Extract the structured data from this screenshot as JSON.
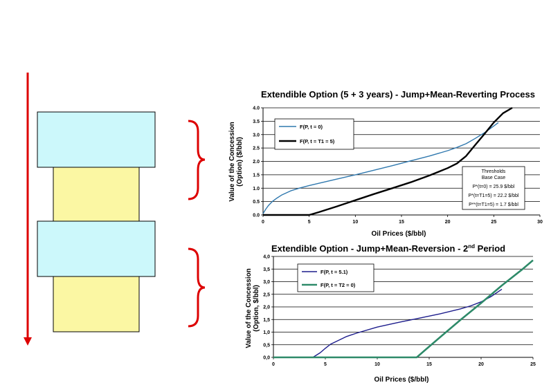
{
  "colors": {
    "arrow": "#dd0000",
    "brace": "#dd0000",
    "cyan_block": "#ccf8fb",
    "yellow_block": "#fbf7a3",
    "series_top_1": "#2f78ae",
    "series_top_2": "#000000",
    "series_bottom_1": "#1c1c8c",
    "series_bottom_2": "#2e8a69"
  },
  "icons": {
    "timeline_arrow": "down-arrow-icon",
    "braces": "right-curly-brace-icon"
  },
  "chart_data": [
    {
      "type": "line",
      "title": "Extendible Option (5 + 3 years) - Jump+Mean-Reverting Process",
      "xlabel": "Oil Prices ($/bbl)",
      "ylabel_line1": "Value of the Concession",
      "ylabel_line2": "(Option) ($/bbl)",
      "xlim": [
        0,
        30
      ],
      "ylim": [
        0,
        4
      ],
      "xticks": [
        "0",
        "5",
        "10",
        "15",
        "20",
        "25",
        "30"
      ],
      "yticks": [
        "0.0",
        "0.5",
        "1.0",
        "1.5",
        "2.0",
        "2.5",
        "3.0",
        "3.5",
        "4.0"
      ],
      "grid": "horizontal",
      "legend_position": "top-left",
      "series": [
        {
          "name": "F(P, t = 0)",
          "x": [
            0,
            0.3,
            0.6,
            1,
            1.5,
            2,
            3,
            4,
            5,
            6,
            8,
            10,
            12,
            14,
            16,
            18,
            20,
            21,
            22,
            23,
            24,
            25,
            25.5
          ],
          "y": [
            0.05,
            0.22,
            0.36,
            0.5,
            0.63,
            0.74,
            0.9,
            1.01,
            1.1,
            1.18,
            1.34,
            1.5,
            1.67,
            1.84,
            2.02,
            2.2,
            2.4,
            2.52,
            2.66,
            2.86,
            3.07,
            3.32,
            3.45
          ]
        },
        {
          "name": "F(P, t = T1 = 5)",
          "x": [
            0,
            5,
            6,
            8,
            10,
            12,
            14,
            16,
            18,
            20,
            21,
            22,
            23,
            24,
            25,
            26,
            27
          ],
          "y": [
            0,
            0,
            0.1,
            0.32,
            0.55,
            0.78,
            1.0,
            1.22,
            1.47,
            1.75,
            1.92,
            2.2,
            2.62,
            3.03,
            3.45,
            3.8,
            4.0
          ]
        }
      ],
      "thresholds": {
        "heading_1": "Thresholds",
        "heading_2": "Base Case",
        "line_1": "P*(t=0) = 25.9 $/bbl",
        "line_2": "P*(t=T1=5) = 22.2 $/bbl",
        "line_3": "P**(t=T1=5) = 1.7 $/bbl"
      }
    },
    {
      "type": "line",
      "title": "Extendible Option - Jump+Mean-Reversion - 2",
      "title_superscript": "nd",
      "title_suffix": " Period",
      "xlabel": "Oil Prices ($/bbl)",
      "ylabel_line1": "Value of the Concession",
      "ylabel_line2": "(Option, $/bbl)",
      "xlim": [
        0,
        25
      ],
      "ylim": [
        0,
        4
      ],
      "xticks": [
        "0",
        "5",
        "10",
        "15",
        "20",
        "25"
      ],
      "yticks": [
        "0,0",
        "0,5",
        "1,0",
        "1,5",
        "2,0",
        "2,5",
        "3,0",
        "3,5",
        "4,0"
      ],
      "grid": "horizontal",
      "legend_position": "top-left",
      "series": [
        {
          "name": "F(P, t = 5.1)",
          "x": [
            0,
            3.8,
            4.5,
            5,
            5.5,
            6,
            7,
            8,
            10,
            12,
            14,
            16,
            18,
            19,
            20,
            21,
            22
          ],
          "y": [
            0,
            0,
            0.18,
            0.36,
            0.52,
            0.62,
            0.82,
            0.96,
            1.2,
            1.38,
            1.55,
            1.72,
            1.92,
            2.04,
            2.2,
            2.42,
            2.7
          ]
        },
        {
          "name": "F(P, t = T2 = 0)",
          "x": [
            0,
            13.8,
            14.5,
            16,
            18,
            20,
            22,
            24,
            25
          ],
          "y": [
            0,
            0,
            0.25,
            0.78,
            1.48,
            2.15,
            2.85,
            3.5,
            3.85
          ]
        }
      ]
    }
  ]
}
